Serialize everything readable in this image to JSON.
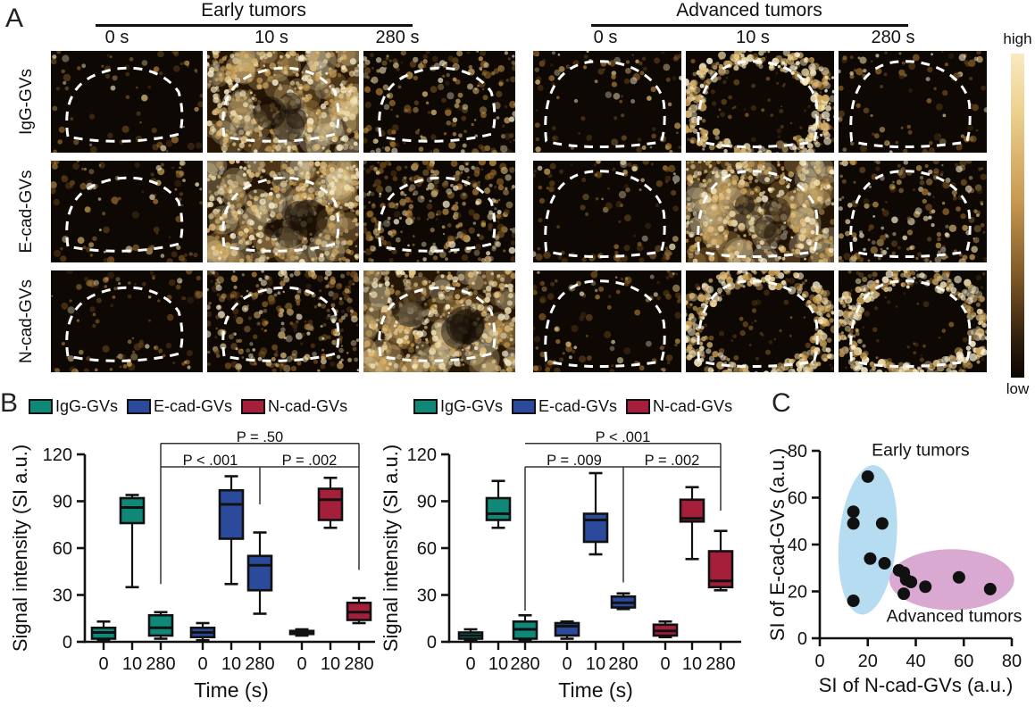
{
  "panel_a": {
    "label": "A",
    "groups": [
      {
        "title": "Early tumors",
        "times": [
          "0 s",
          "10 s",
          "280 s"
        ]
      },
      {
        "title": "Advanced tumors",
        "times": [
          "0 s",
          "10 s",
          "280 s"
        ]
      }
    ],
    "row_labels": [
      "IgG-GVs",
      "E-cad-GVs",
      "N-cad-GVs"
    ],
    "colorbar": {
      "high_label": "high",
      "low_label": "low",
      "top_color": "#f8e9c0",
      "bottom_color": "#0b0602"
    },
    "cells": [
      {
        "row": "IgG-GVs",
        "group": "Early tumors",
        "time": "0 s",
        "texture": "dark",
        "shape": "a"
      },
      {
        "row": "IgG-GVs",
        "group": "Early tumors",
        "time": "10 s",
        "texture": "bright",
        "shape": "a"
      },
      {
        "row": "IgG-GVs",
        "group": "Early tumors",
        "time": "280 s",
        "texture": "medium",
        "shape": "a"
      },
      {
        "row": "IgG-GVs",
        "group": "Advanced tumors",
        "time": "0 s",
        "texture": "sparse",
        "shape": "b"
      },
      {
        "row": "IgG-GVs",
        "group": "Advanced tumors",
        "time": "10 s",
        "texture": "rim",
        "shape": "b"
      },
      {
        "row": "IgG-GVs",
        "group": "Advanced tumors",
        "time": "280 s",
        "texture": "sparse",
        "shape": "b"
      },
      {
        "row": "E-cad-GVs",
        "group": "Early tumors",
        "time": "0 s",
        "texture": "sparse",
        "shape": "a"
      },
      {
        "row": "E-cad-GVs",
        "group": "Early tumors",
        "time": "10 s",
        "texture": "bright",
        "shape": "a"
      },
      {
        "row": "E-cad-GVs",
        "group": "Early tumors",
        "time": "280 s",
        "texture": "speckled",
        "shape": "a"
      },
      {
        "row": "E-cad-GVs",
        "group": "Advanced tumors",
        "time": "0 s",
        "texture": "sparse",
        "shape": "b"
      },
      {
        "row": "E-cad-GVs",
        "group": "Advanced tumors",
        "time": "10 s",
        "texture": "bright",
        "shape": "b"
      },
      {
        "row": "E-cad-GVs",
        "group": "Advanced tumors",
        "time": "280 s",
        "texture": "medium",
        "shape": "b"
      },
      {
        "row": "N-cad-GVs",
        "group": "Early tumors",
        "time": "0 s",
        "texture": "sparse",
        "shape": "a"
      },
      {
        "row": "N-cad-GVs",
        "group": "Early tumors",
        "time": "10 s",
        "texture": "speckled",
        "shape": "a"
      },
      {
        "row": "N-cad-GVs",
        "group": "Early tumors",
        "time": "280 s",
        "texture": "bright",
        "shape": "a"
      },
      {
        "row": "N-cad-GVs",
        "group": "Advanced tumors",
        "time": "0 s",
        "texture": "sparse",
        "shape": "b"
      },
      {
        "row": "N-cad-GVs",
        "group": "Advanced tumors",
        "time": "10 s",
        "texture": "rim",
        "shape": "b"
      },
      {
        "row": "N-cad-GVs",
        "group": "Advanced tumors",
        "time": "280 s",
        "texture": "rim",
        "shape": "b"
      }
    ]
  },
  "panel_b": {
    "label": "B",
    "legend": [
      {
        "label": "IgG-GVs",
        "color": "#0f8878"
      },
      {
        "label": "E-cad-GVs",
        "color": "#2b4a9b"
      },
      {
        "label": "N-cad-GVs",
        "color": "#a51e3a"
      }
    ]
  },
  "panel_c": {
    "label": "C"
  },
  "chart_data": [
    {
      "type": "box",
      "group": "Early tumors",
      "ylabel": "Signal intensity (SI a.u.)",
      "xlabel": "Time (s)",
      "ylim": [
        0,
        120
      ],
      "yticks": [
        0,
        30,
        60,
        90,
        120
      ],
      "categories": [
        "0",
        "10",
        "280"
      ],
      "series": [
        {
          "name": "IgG-GVs",
          "color": "#0f8878",
          "boxes": [
            [
              1,
              2,
              6,
              9,
              13
            ],
            [
              35,
              76,
              86,
              92,
              94
            ],
            [
              2,
              4,
              9,
              17,
              19
            ]
          ]
        },
        {
          "name": "E-cad-GVs",
          "color": "#2b4a9b",
          "boxes": [
            [
              1,
              3,
              6,
              9,
              12
            ],
            [
              37,
              66,
              88,
              97,
              106
            ],
            [
              18,
              33,
              49,
              55,
              70
            ]
          ]
        },
        {
          "name": "N-cad-GVs",
          "color": "#a51e3a",
          "boxes": [
            [
              4,
              5,
              6,
              7,
              8
            ],
            [
              73,
              78,
              91,
              98,
              105
            ],
            [
              12,
              14,
              19,
              25,
              28
            ]
          ]
        }
      ],
      "significance": {
        "labels": [
          {
            "text": "P = .50",
            "between_slots": [
              2,
              8
            ],
            "y": 131
          },
          {
            "text": "P < .001",
            "between_slots": [
              2,
              5
            ],
            "y": 116
          },
          {
            "text": "P = .002",
            "between_slots": [
              5,
              8
            ],
            "y": 116
          }
        ],
        "hlines": [
          {
            "y": 127,
            "slots": [
              2,
              8
            ]
          },
          {
            "y": 112,
            "slots": [
              2,
              8
            ]
          }
        ],
        "vlines": [
          {
            "slot": 2,
            "y1": 127,
            "y2": 37
          },
          {
            "slot": 5,
            "y1": 112,
            "y2": 88
          },
          {
            "slot": 8,
            "y1": 127,
            "y2": 46
          }
        ]
      }
    },
    {
      "type": "box",
      "group": "Advanced tumors",
      "ylabel": "Signal intensity (SI a.u.)",
      "xlabel": "Time (s)",
      "ylim": [
        0,
        120
      ],
      "yticks": [
        0,
        30,
        60,
        90,
        120
      ],
      "categories": [
        "0",
        "10",
        "280"
      ],
      "series": [
        {
          "name": "IgG-GVs",
          "color": "#0f8878",
          "boxes": [
            [
              1,
              2,
              4,
              6,
              8
            ],
            [
              73,
              78,
              82,
              92,
              103
            ],
            [
              1,
              2,
              8,
              13,
              17
            ]
          ]
        },
        {
          "name": "E-cad-GVs",
          "color": "#2b4a9b",
          "boxes": [
            [
              2,
              4,
              10,
              12,
              13
            ],
            [
              56,
              64,
              78,
              82,
              108
            ],
            [
              21,
              22,
              25,
              29,
              31
            ]
          ]
        },
        {
          "name": "N-cad-GVs",
          "color": "#a51e3a",
          "boxes": [
            [
              3,
              4,
              7,
              11,
              13
            ],
            [
              53,
              77,
              79,
              91,
              99
            ],
            [
              33,
              35,
              39,
              58,
              71
            ]
          ]
        }
      ],
      "significance": {
        "labels": [
          {
            "text": "P < .001",
            "between_slots": [
              2,
              8
            ],
            "y": 131
          },
          {
            "text": "P = .009",
            "between_slots": [
              2,
              5
            ],
            "y": 116
          },
          {
            "text": "P = .002",
            "between_slots": [
              5,
              8
            ],
            "y": 116
          }
        ],
        "hlines": [
          {
            "y": 127,
            "slots": [
              2,
              8
            ]
          },
          {
            "y": 112,
            "slots": [
              2,
              8
            ]
          }
        ],
        "vlines": [
          {
            "slot": 2,
            "y1": 112,
            "y2": 20
          },
          {
            "slot": 5,
            "y1": 112,
            "y2": 38
          },
          {
            "slot": 8,
            "y1": 127,
            "y2": 84
          }
        ]
      }
    },
    {
      "type": "scatter",
      "xlabel": "SI of N-cad-GVs (a.u.)",
      "ylabel": "SI of E-cad-GVs (a.u.)",
      "xlim": [
        0,
        80
      ],
      "ylim": [
        0,
        80
      ],
      "xticks": [
        0,
        20,
        40,
        60,
        80
      ],
      "yticks": [
        0,
        20,
        40,
        60,
        80
      ],
      "point_color": "#111111",
      "clusters": [
        {
          "name": "Early tumors",
          "label_pos": {
            "x": 42,
            "y": 78
          },
          "ellipse": {
            "cx": 20,
            "cy": 42,
            "rx": 12,
            "ry": 32,
            "rotate": 5,
            "color": "#b5dcf1"
          },
          "points": [
            [
              20,
              69
            ],
            [
              14,
              54
            ],
            [
              14,
              49
            ],
            [
              26,
              49
            ],
            [
              21,
              34
            ],
            [
              27,
              32
            ],
            [
              14,
              16
            ]
          ]
        },
        {
          "name": "Advanced tumors",
          "label_pos": {
            "x": 56,
            "y": 7
          },
          "ellipse": {
            "cx": 55,
            "cy": 25,
            "rx": 26,
            "ry": 13,
            "rotate": 0,
            "color": "#d9a9d2"
          },
          "points": [
            [
              33,
              29
            ],
            [
              35,
              28
            ],
            [
              36,
              25
            ],
            [
              38,
              24
            ],
            [
              35,
              19
            ],
            [
              44,
              22
            ],
            [
              58,
              26
            ],
            [
              71,
              21
            ]
          ]
        }
      ]
    }
  ]
}
